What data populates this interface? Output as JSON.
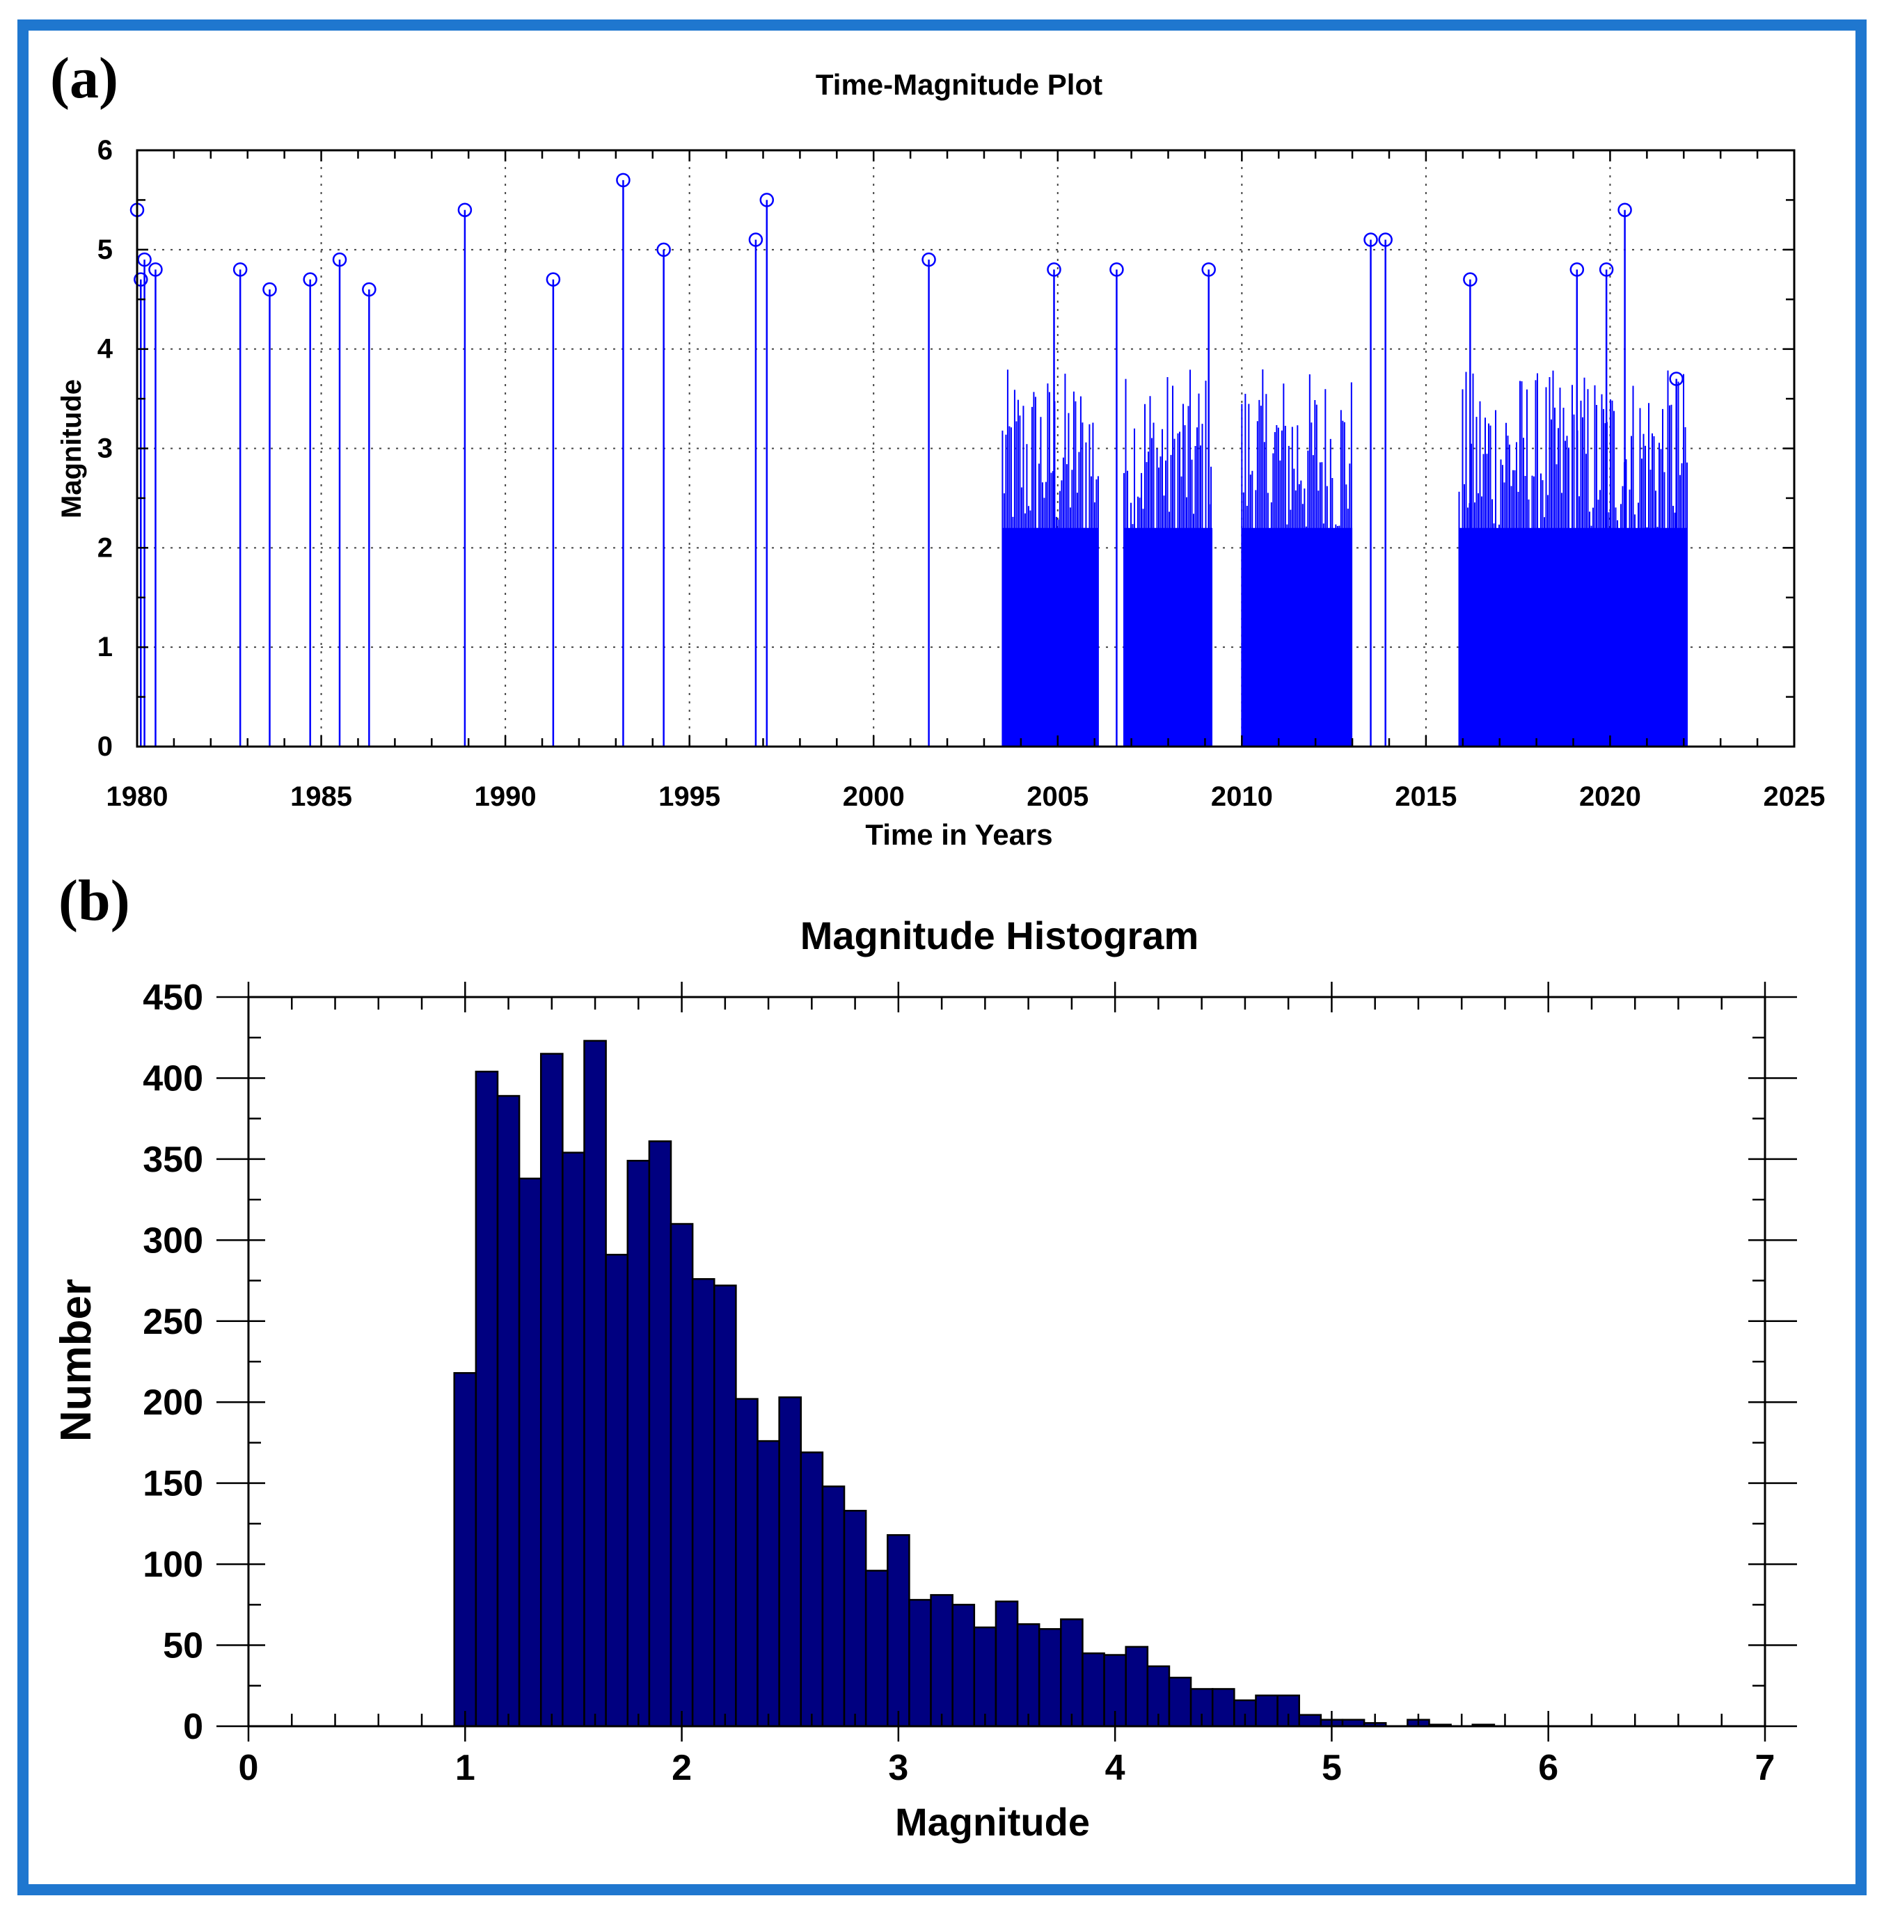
{
  "figure": {
    "frame_color": "#1f77cf",
    "series_color": "#0000ff",
    "bar_color": "#000080"
  },
  "panel_a": {
    "label": "(a)"
  },
  "panel_b": {
    "label": "(b)"
  },
  "chart_data": [
    {
      "id": "time-magnitude",
      "type": "stem",
      "title": "Time-Magnitude Plot",
      "xlabel": "Time in Years",
      "ylabel": "Magnitude",
      "xlim": [
        1980,
        2025
      ],
      "ylim": [
        0,
        6
      ],
      "x_ticks": [
        "1980",
        "1985",
        "1990",
        "1995",
        "2000",
        "2005",
        "2010",
        "2015",
        "2020",
        "2025"
      ],
      "y_ticks": [
        "0",
        "1",
        "2",
        "3",
        "4",
        "5",
        "6"
      ],
      "grid": "dotted",
      "marker": "open-circle",
      "notable_events": [
        {
          "x": 1980.0,
          "y": 5.4
        },
        {
          "x": 1980.1,
          "y": 4.7
        },
        {
          "x": 1980.2,
          "y": 4.9
        },
        {
          "x": 1980.5,
          "y": 4.8
        },
        {
          "x": 1982.8,
          "y": 4.8
        },
        {
          "x": 1983.6,
          "y": 4.6
        },
        {
          "x": 1984.7,
          "y": 4.7
        },
        {
          "x": 1985.5,
          "y": 4.9
        },
        {
          "x": 1986.3,
          "y": 4.6
        },
        {
          "x": 1988.9,
          "y": 5.4
        },
        {
          "x": 1991.3,
          "y": 4.7
        },
        {
          "x": 1993.2,
          "y": 5.7
        },
        {
          "x": 1994.3,
          "y": 5.0
        },
        {
          "x": 1996.8,
          "y": 5.1
        },
        {
          "x": 1997.1,
          "y": 5.5
        },
        {
          "x": 2001.5,
          "y": 4.9
        },
        {
          "x": 2004.9,
          "y": 4.8
        },
        {
          "x": 2006.6,
          "y": 4.8
        },
        {
          "x": 2009.1,
          "y": 4.8
        },
        {
          "x": 2013.5,
          "y": 5.1
        },
        {
          "x": 2013.9,
          "y": 5.1
        },
        {
          "x": 2016.2,
          "y": 4.7
        },
        {
          "x": 2019.1,
          "y": 4.8
        },
        {
          "x": 2019.9,
          "y": 4.8
        },
        {
          "x": 2020.4,
          "y": 5.4
        },
        {
          "x": 2021.8,
          "y": 3.7
        }
      ],
      "dense_periods": [
        [
          2003.5,
          2006.1
        ],
        [
          2006.8,
          2009.2
        ],
        [
          2010.0,
          2013.0
        ],
        [
          2015.9,
          2022.1
        ]
      ]
    },
    {
      "id": "magnitude-histogram",
      "type": "bar",
      "title": "Magnitude Histogram",
      "xlabel": "Magnitude",
      "ylabel": "Number",
      "xlim": [
        0,
        7
      ],
      "ylim": [
        0,
        450
      ],
      "x_ticks": [
        "0",
        "1",
        "2",
        "3",
        "4",
        "5",
        "6",
        "7"
      ],
      "y_ticks": [
        "0",
        "50",
        "100",
        "150",
        "200",
        "250",
        "300",
        "350",
        "400",
        "450"
      ],
      "bin_width": 0.1,
      "bin_starts": [
        0.95,
        1.05,
        1.15,
        1.25,
        1.35,
        1.45,
        1.55,
        1.65,
        1.75,
        1.85,
        1.95,
        2.05,
        2.15,
        2.25,
        2.35,
        2.45,
        2.55,
        2.65,
        2.75,
        2.85,
        2.95,
        3.05,
        3.15,
        3.25,
        3.35,
        3.45,
        3.55,
        3.65,
        3.75,
        3.85,
        3.95,
        4.05,
        4.15,
        4.25,
        4.35,
        4.45,
        4.55,
        4.65,
        4.75,
        4.85,
        4.95,
        5.05,
        5.15,
        5.25,
        5.35,
        5.45,
        5.55,
        5.65,
        5.75
      ],
      "values": [
        218,
        404,
        389,
        338,
        415,
        354,
        423,
        291,
        349,
        361,
        310,
        276,
        272,
        202,
        176,
        203,
        169,
        148,
        133,
        96,
        118,
        78,
        81,
        75,
        61,
        77,
        63,
        60,
        66,
        45,
        44,
        49,
        37,
        30,
        23,
        23,
        16,
        19,
        19,
        7,
        4,
        4,
        2,
        0,
        4,
        1,
        0,
        1,
        0
      ]
    }
  ]
}
